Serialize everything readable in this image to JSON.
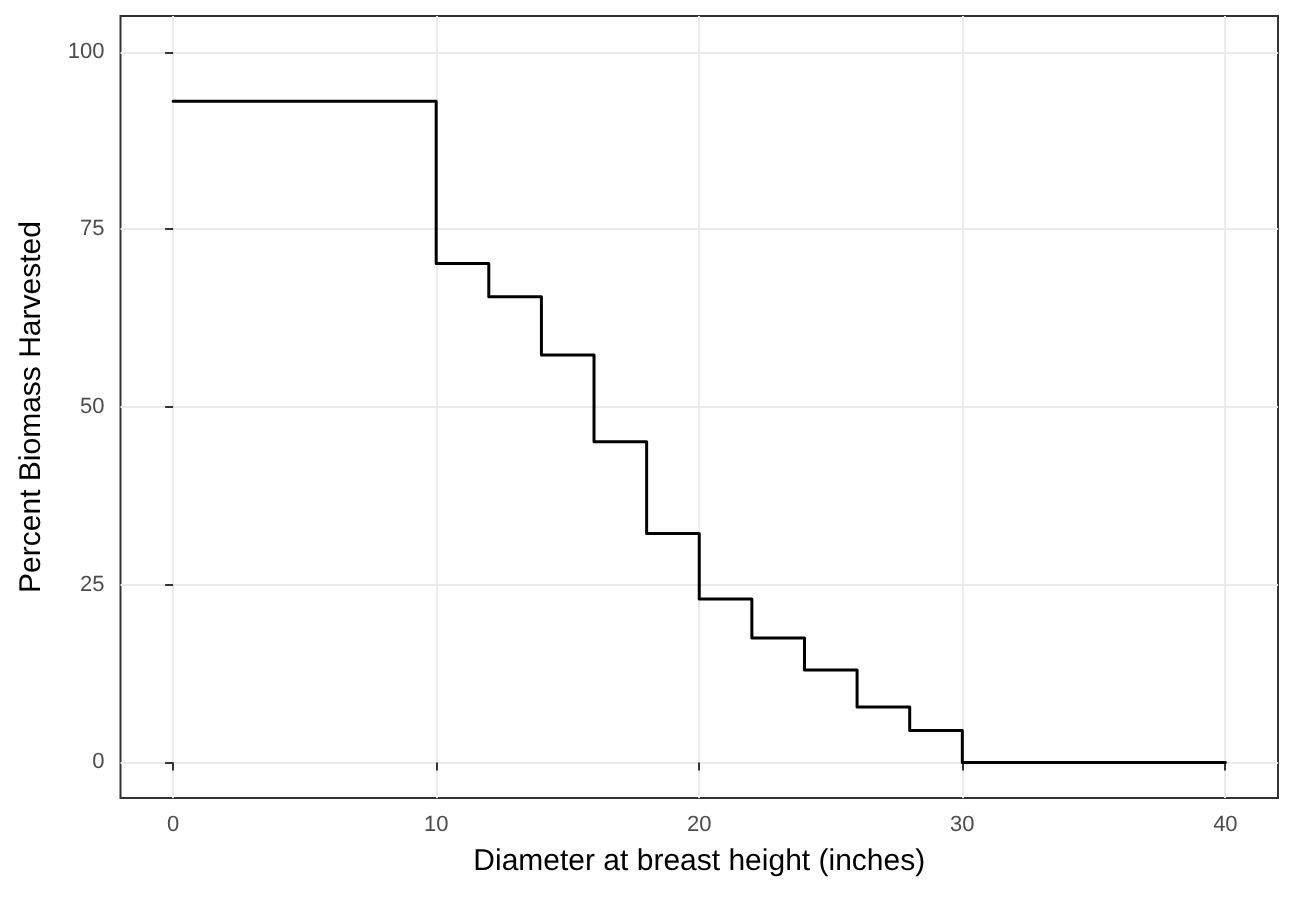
{
  "chart_data": {
    "type": "step",
    "xlabel": "Diameter at breast height (inches)",
    "ylabel": "Percent Biomass Harvested",
    "x": [
      0,
      10,
      12,
      14,
      16,
      18,
      20,
      22,
      24,
      26,
      28,
      30,
      40
    ],
    "series": [
      {
        "color": "#000000",
        "values": [
          93,
          70.2,
          65.5,
          57.3,
          45.1,
          32.2,
          23.0,
          17.5,
          13.0,
          7.8,
          4.5,
          0,
          0
        ]
      }
    ],
    "xlim": [
      -2,
      42
    ],
    "xticks": [
      0,
      10,
      20,
      30,
      40
    ],
    "ylim": [
      -5,
      105
    ],
    "yticks": [
      0,
      25,
      50,
      75,
      100
    ],
    "grid": true,
    "marker": "none",
    "line_style": "solid"
  }
}
